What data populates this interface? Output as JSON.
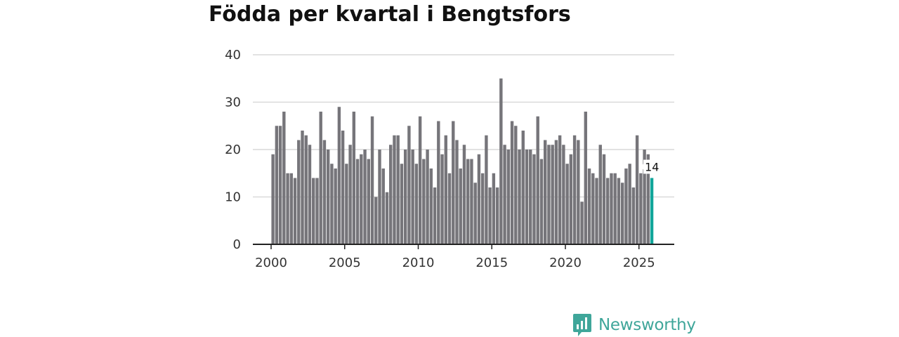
{
  "colors": {
    "bar": "#76757a",
    "highlight": "#11a59a",
    "grid": "#d9d9d9",
    "axis": "#222222",
    "text": "#333333",
    "brand": "#3fa69a"
  },
  "brand": {
    "name": "Newsworthy",
    "icon": "newsworthy-logo-icon"
  },
  "chart_data": {
    "type": "bar",
    "title": "Födda per kvartal i Bengtsfors",
    "xlabel": "",
    "ylabel": "",
    "ylim": [
      0,
      40
    ],
    "yticks": [
      {
        "value": 0,
        "label": "0"
      },
      {
        "value": 10,
        "label": "10"
      },
      {
        "value": 20,
        "label": "20"
      },
      {
        "value": 30,
        "label": "30"
      },
      {
        "value": 40,
        "label": "40"
      }
    ],
    "xticks": [
      {
        "year": 2000,
        "label": "2000"
      },
      {
        "year": 2005,
        "label": "2005"
      },
      {
        "year": 2010,
        "label": "2010"
      },
      {
        "year": 2015,
        "label": "2015"
      },
      {
        "year": 2020,
        "label": "2020"
      },
      {
        "year": 2025,
        "label": "2025"
      }
    ],
    "start": "2000 Q1",
    "end": "2025 Q4",
    "values": [
      19,
      25,
      25,
      28,
      15,
      15,
      14,
      22,
      24,
      23,
      21,
      14,
      14,
      28,
      22,
      20,
      17,
      16,
      29,
      24,
      17,
      21,
      28,
      18,
      19,
      20,
      18,
      27,
      10,
      20,
      16,
      11,
      21,
      23,
      23,
      17,
      20,
      25,
      20,
      17,
      27,
      18,
      20,
      16,
      12,
      26,
      19,
      23,
      15,
      26,
      22,
      16,
      21,
      18,
      18,
      13,
      19,
      15,
      23,
      12,
      15,
      12,
      35,
      21,
      20,
      26,
      25,
      20,
      24,
      20,
      20,
      19,
      27,
      18,
      22,
      21,
      21,
      22,
      23,
      21,
      17,
      19,
      23,
      22,
      9,
      28,
      16,
      15,
      14,
      21,
      19,
      14,
      15,
      15,
      14,
      13,
      16,
      17,
      12,
      23,
      15,
      20,
      19,
      14
    ],
    "highlight_index": 103,
    "data_label": {
      "index": 103,
      "text": "14"
    }
  }
}
